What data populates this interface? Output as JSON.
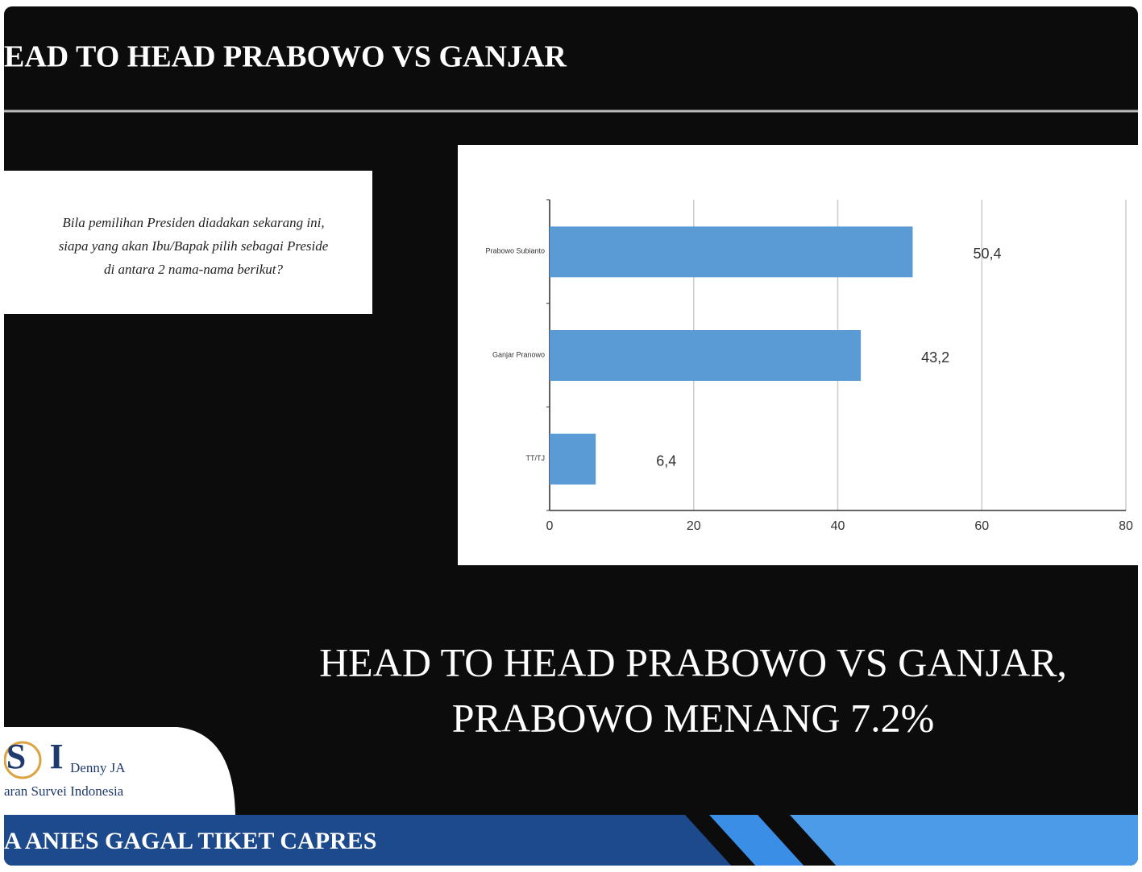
{
  "slide": {
    "header": "EAD TO HEAD PRABOWO VS GANJAR",
    "question": [
      "Bila pemilihan Presiden diadakan sekarang ini,",
      "siapa yang akan Ibu/Bapak pilih sebagai Preside",
      "di antara 2 nama-nama berikut?"
    ],
    "headline": [
      "HEAD TO HEAD PRABOWO VS GANJAR,",
      "PRABOWO MENANG 7.2%"
    ],
    "logo": {
      "letter1": "S",
      "letter2": "I",
      "brand": "Denny JA",
      "org": "aran Survei Indonesia"
    },
    "banner": "A ANIES GAGAL TIKET CAPRES"
  },
  "chart_data": {
    "type": "hbar",
    "categories": [
      "Prabowo Subianto",
      "Ganjar Pranowo",
      "TT/TJ"
    ],
    "values": [
      50.4,
      43.2,
      6.4
    ],
    "value_labels": [
      "50,4",
      "43,2",
      "6,4"
    ],
    "color": "#5b9bd5",
    "xlim": [
      0,
      80
    ],
    "xticks": [
      0,
      20,
      40,
      60,
      80
    ],
    "grid": true
  }
}
